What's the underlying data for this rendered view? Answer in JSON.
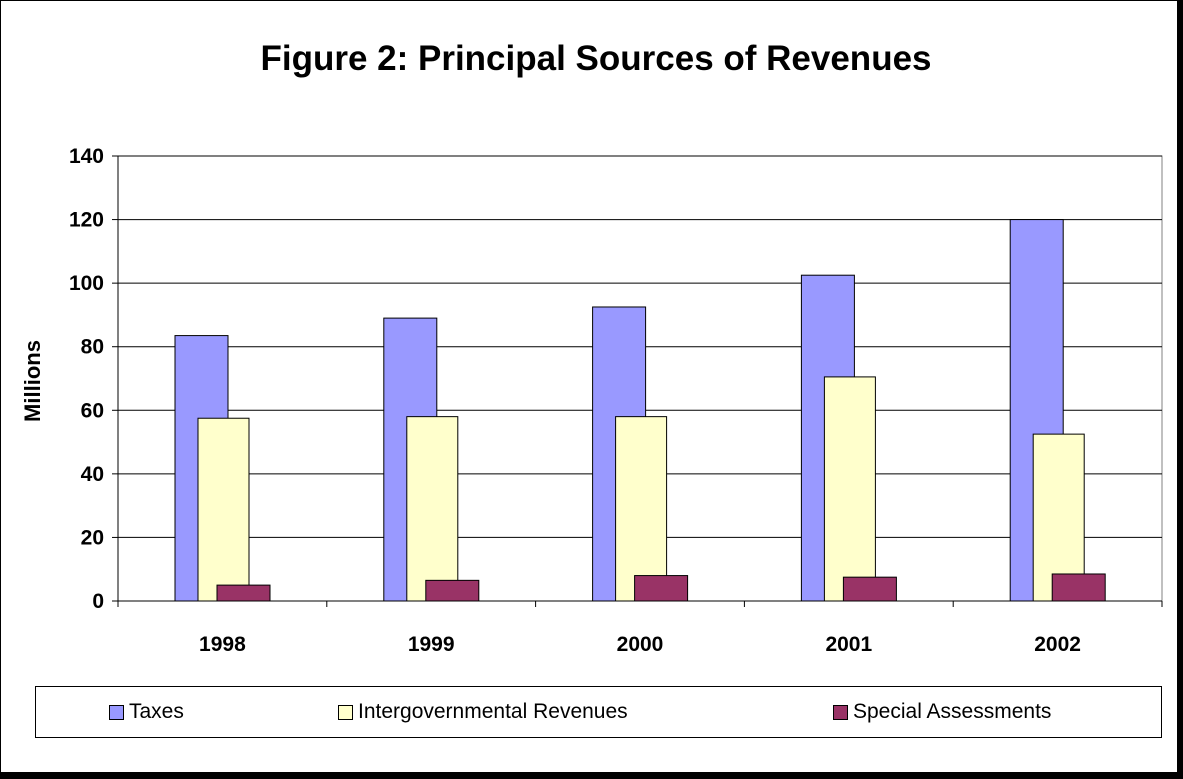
{
  "chart_data": {
    "type": "bar",
    "title": "Figure 2: Principal Sources of Revenues",
    "xlabel": "",
    "ylabel": "Millions",
    "categories": [
      "1998",
      "1999",
      "2000",
      "2001",
      "2002"
    ],
    "yticks": [
      "0",
      "20",
      "40",
      "60",
      "80",
      "100",
      "120",
      "140"
    ],
    "ylim": [
      0,
      140
    ],
    "grid": true,
    "legend_position": "bottom",
    "series": [
      {
        "name": "Taxes",
        "values": [
          83.5,
          89,
          92.5,
          102.5,
          120
        ],
        "color": "#9999ff"
      },
      {
        "name": "Intergovernmental Revenues",
        "values": [
          57.5,
          58,
          58,
          70.5,
          52.5
        ],
        "color": "#ffffcc"
      },
      {
        "name": "Special Assessments",
        "values": [
          5,
          6.5,
          8,
          7.5,
          8.5
        ],
        "color": "#993366"
      }
    ]
  }
}
